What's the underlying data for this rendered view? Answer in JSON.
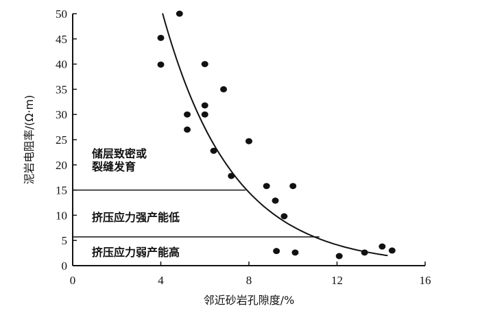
{
  "chart_data": {
    "type": "scatter",
    "xlabel": "邻近砂岩孔隙度/%",
    "ylabel": "泥岩电阻率/(Ω·m)",
    "xlim": [
      0,
      16
    ],
    "ylim": [
      0,
      50
    ],
    "xticks": [
      0,
      4,
      8,
      12,
      16
    ],
    "yticks": [
      0,
      5,
      10,
      15,
      20,
      25,
      30,
      35,
      40,
      45,
      50
    ],
    "grid": false,
    "points": [
      [
        4.85,
        50
      ],
      [
        4.0,
        45.2
      ],
      [
        4.0,
        39.9
      ],
      [
        6.0,
        40
      ],
      [
        6.85,
        35
      ],
      [
        6.0,
        31.8
      ],
      [
        5.2,
        30
      ],
      [
        6.0,
        30
      ],
      [
        5.2,
        27
      ],
      [
        6.4,
        22.8
      ],
      [
        8.0,
        24.7
      ],
      [
        7.2,
        17.8
      ],
      [
        8.8,
        15.8
      ],
      [
        10.0,
        15.8
      ],
      [
        9.2,
        12.9
      ],
      [
        9.6,
        9.8
      ],
      [
        9.25,
        2.9
      ],
      [
        10.1,
        2.6
      ],
      [
        12.1,
        1.9
      ],
      [
        13.25,
        2.6
      ],
      [
        14.05,
        3.8
      ],
      [
        14.5,
        3.0
      ]
    ],
    "trend_curve": {
      "form": "y = a*exp(-b*x)",
      "a": 181,
      "b": 0.315,
      "x_range": [
        4.08,
        14.3
      ]
    },
    "thresholds": [
      {
        "y": 15,
        "x_end": 7.85
      },
      {
        "y": 5.7,
        "x_end": 11.2
      }
    ],
    "annotations": [
      {
        "lines": [
          "储层致密或",
          "裂缝发育"
        ]
      },
      {
        "lines": [
          "挤压应力强产能低"
        ]
      },
      {
        "lines": [
          "挤压应力弱产能高"
        ]
      }
    ]
  }
}
